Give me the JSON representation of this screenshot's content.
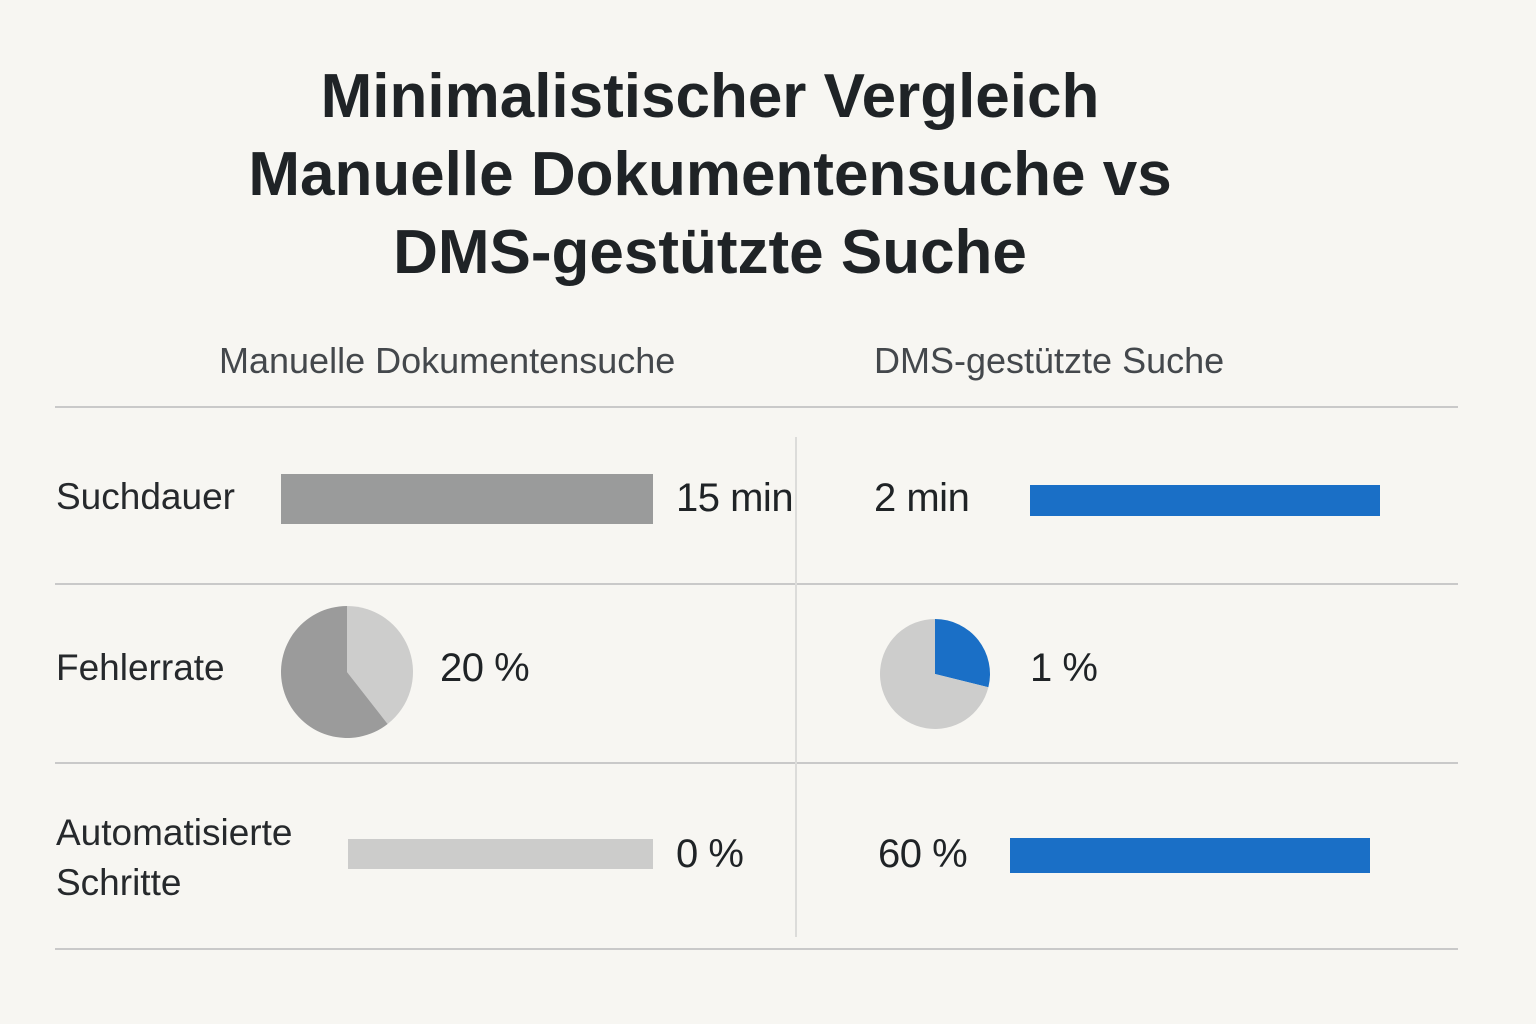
{
  "title": {
    "line1": "Minimalistischer Vergleich",
    "line2": "Manuelle Dokumentensuche vs",
    "line3": "DMS-gestützte Suche"
  },
  "colors": {
    "manual_bar": "#9a9b9b",
    "manual_bar_light": "#cccccb",
    "dms_blue": "#1a6fc6",
    "pie_dark": "#9b9b9b",
    "pie_light": "#cdcdcc"
  },
  "chart_data": {
    "type": "table",
    "columns": [
      "Manuelle Dokumentensuche",
      "DMS-gestützte Suche"
    ],
    "rows": [
      {
        "label": "Suchdauer",
        "kind": "bar",
        "manual": {
          "text": "15 min",
          "value": 15,
          "unit": "min"
        },
        "dms": {
          "text": "2 min",
          "value": 2,
          "unit": "min"
        }
      },
      {
        "label": "Fehlerrate",
        "kind": "pie",
        "manual": {
          "text": "20 %",
          "value": 20,
          "unit": "%"
        },
        "dms": {
          "text": "1 %",
          "value": 1,
          "unit": "%"
        }
      },
      {
        "label_lines": [
          "Automatisierte",
          "Schritte"
        ],
        "kind": "bar",
        "manual": {
          "text": "0 %",
          "value": 0,
          "unit": "%"
        },
        "dms": {
          "text": "60 %",
          "value": 60,
          "unit": "%"
        }
      }
    ]
  }
}
